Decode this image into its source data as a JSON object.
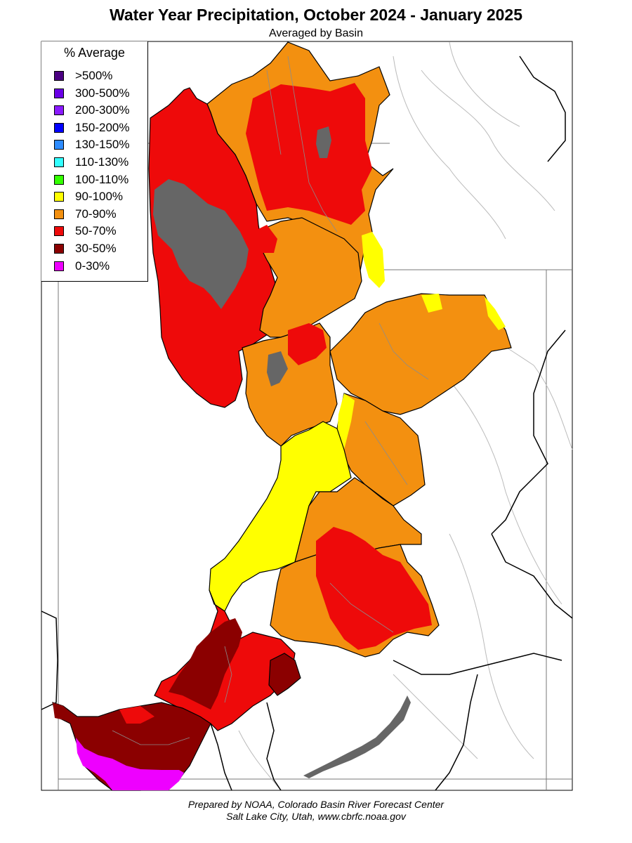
{
  "title": "Water Year Precipitation, October 2024 - January 2025",
  "subtitle": "Averaged by Basin",
  "legend": {
    "title": "% Average",
    "items": [
      {
        "label": ">500%",
        "color": "#4b0082"
      },
      {
        "label": "300-500%",
        "color": "#6a00e6"
      },
      {
        "label": "200-300%",
        "color": "#8a1aff"
      },
      {
        "label": "150-200%",
        "color": "#0000ff"
      },
      {
        "label": "130-150%",
        "color": "#2e8cff"
      },
      {
        "label": "110-130%",
        "color": "#33ffff"
      },
      {
        "label": "100-110%",
        "color": "#33ff00"
      },
      {
        "label": "90-100%",
        "color": "#ffff00"
      },
      {
        "label": "70-90%",
        "color": "#f39010"
      },
      {
        "label": "50-70%",
        "color": "#ee0a0a"
      },
      {
        "label": "30-50%",
        "color": "#8b0000"
      },
      {
        "label": "0-30%",
        "color": "#ee00ff"
      }
    ]
  },
  "map_colors": {
    "lake": "#666666",
    "border": "#000000",
    "river": "#999999"
  },
  "footer": {
    "line1": "Prepared by NOAA, Colorado Basin River Forecast Center",
    "line2": "Salt Lake City, Utah, www.cbrfc.noaa.gov"
  }
}
